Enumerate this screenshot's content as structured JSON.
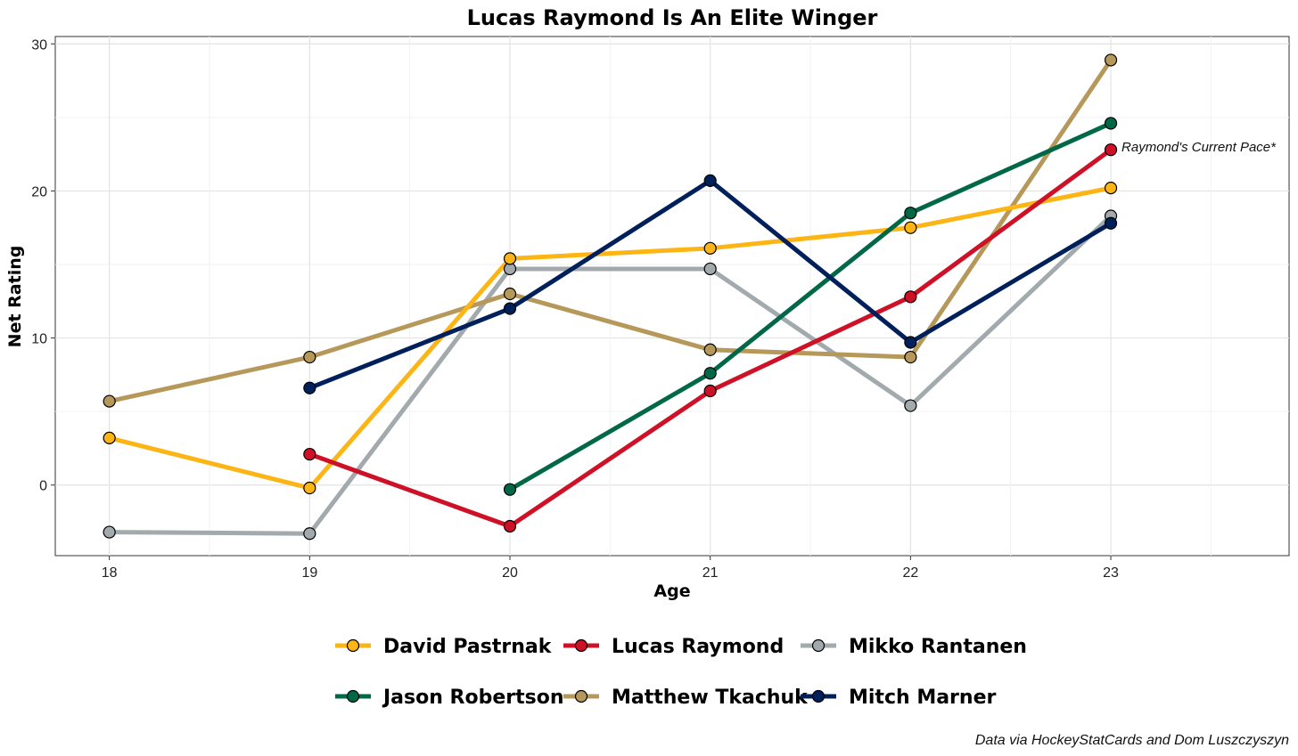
{
  "chart_data": {
    "type": "line",
    "title": "Lucas Raymond Is An Elite Winger",
    "xlabel": "Age",
    "ylabel": "Net Rating",
    "x": [
      18,
      19,
      20,
      21,
      22,
      23
    ],
    "xlim": [
      17.73,
      23.89
    ],
    "ylim": [
      -4.8,
      30.5
    ],
    "x_ticks": [
      "18",
      "19",
      "20",
      "21",
      "22",
      "23"
    ],
    "y_ticks": [
      "0",
      "10",
      "20",
      "30"
    ],
    "y_tick_values": [
      0,
      10,
      20,
      30
    ],
    "grid": true,
    "legend_position": "bottom",
    "series": [
      {
        "name": "Mikko Rantanen",
        "color": "#A2AAAD",
        "values": [
          -3.2,
          -3.3,
          14.7,
          14.7,
          5.4,
          18.3
        ]
      },
      {
        "name": "Matthew Tkachuk",
        "color": "#B5985A",
        "values": [
          5.7,
          8.7,
          13.0,
          9.2,
          8.7,
          28.9
        ]
      },
      {
        "name": "David Pastrnak",
        "color": "#FCB514",
        "values": [
          3.2,
          -0.2,
          15.4,
          16.1,
          17.5,
          20.2
        ]
      },
      {
        "name": "Lucas Raymond",
        "color": "#CE1126",
        "values": [
          null,
          2.1,
          -2.8,
          6.4,
          12.8,
          22.8
        ]
      },
      {
        "name": "Jason Robertson",
        "color": "#006847",
        "values": [
          null,
          null,
          -0.3,
          7.6,
          18.5,
          24.6
        ]
      },
      {
        "name": "Mitch Marner",
        "color": "#00205B",
        "values": [
          null,
          6.6,
          12.0,
          20.7,
          9.7,
          17.8
        ]
      }
    ],
    "legend_order": [
      "David Pastrnak",
      "Lucas Raymond",
      "Mikko Rantanen",
      "Jason Robertson",
      "Matthew Tkachuk",
      "Mitch Marner"
    ],
    "annotation": {
      "text": "Raymond's Current Pace*",
      "x": 23,
      "y": 22.8
    },
    "caption": "Data via HockeyStatCards and Dom Luszczyszyn"
  }
}
